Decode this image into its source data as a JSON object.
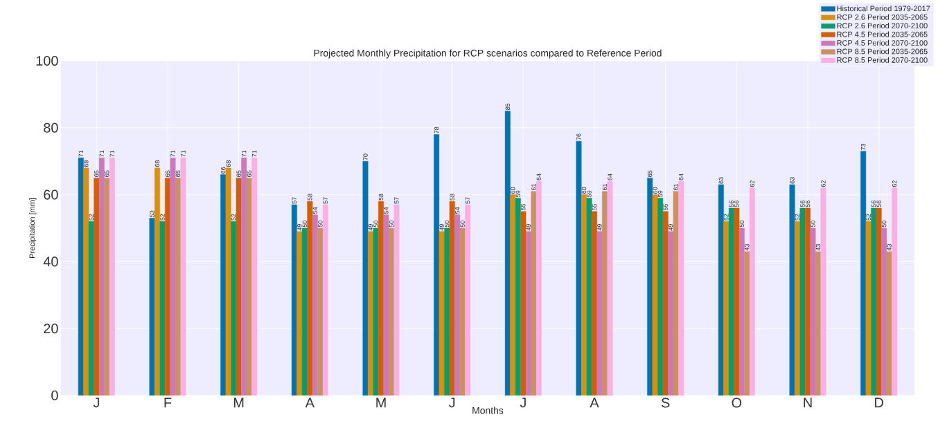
{
  "chart_data": {
    "type": "bar",
    "title": "Projected Monthly Precipitation for RCP scenarios compared to Reference Period",
    "xlabel": "Months",
    "ylabel": "Precipitation [mm]",
    "categories": [
      "J",
      "F",
      "M",
      "A",
      "M",
      "J",
      "J",
      "A",
      "S",
      "O",
      "N",
      "D"
    ],
    "series": [
      {
        "name": "Historical Period 1979-2017",
        "color": "#0173b2",
        "values": [
          71,
          53,
          66,
          57,
          70,
          78,
          85,
          76,
          65,
          63,
          63,
          73
        ]
      },
      {
        "name": "RCP 2.6 Period 2035-2065",
        "color": "#de8f05",
        "values": [
          68,
          68,
          68,
          49,
          49,
          49,
          60,
          60,
          60,
          52,
          52,
          52
        ]
      },
      {
        "name": "RCP 2.6 Period 2070-2100",
        "color": "#029e73",
        "values": [
          52,
          52,
          52,
          50,
          50,
          50,
          59,
          59,
          59,
          56,
          56,
          56
        ]
      },
      {
        "name": "RCP 4.5 Period 2035-2065",
        "color": "#d55e00",
        "values": [
          65,
          65,
          65,
          58,
          58,
          58,
          55,
          55,
          55,
          56,
          56,
          56
        ]
      },
      {
        "name": "RCP 4.5 Period 2070-2100",
        "color": "#cc78bc",
        "values": [
          71,
          71,
          71,
          54,
          54,
          54,
          49,
          49,
          49,
          50,
          50,
          50
        ]
      },
      {
        "name": "RCP 8.5 Period 2035-2065",
        "color": "#ca9161",
        "values": [
          65,
          65,
          65,
          50,
          50,
          50,
          61,
          61,
          61,
          43,
          43,
          43
        ]
      },
      {
        "name": "RCP 8.5 Period 2070-2100",
        "color": "#fbafe4",
        "values": [
          71,
          71,
          71,
          57,
          57,
          57,
          64,
          64,
          64,
          62,
          62,
          62
        ]
      }
    ],
    "ylim": [
      0,
      100
    ],
    "yticks": [
      0,
      20,
      40,
      60,
      80,
      100
    ],
    "grid": true,
    "legend": "top right",
    "data_labels": true
  }
}
